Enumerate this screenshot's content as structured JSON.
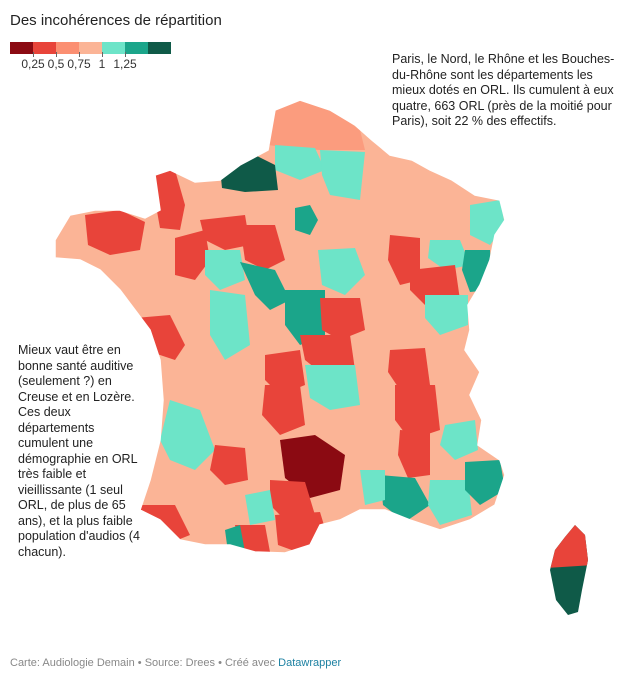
{
  "title": "Des incohérences de répartition",
  "legend": {
    "colors": [
      "#8b0a12",
      "#e8443a",
      "#fb8f72",
      "#fbb496",
      "#6de4c8",
      "#1ba58a",
      "#0f5a48"
    ],
    "ticks": [
      "0,25",
      "0,5",
      "0,75",
      "1",
      "1,25"
    ]
  },
  "annotations": {
    "paris": "Paris, le Nord, le Rhône et les Bouches-du-Rhône sont les départements les mieux dotés en ORL. Ils cumulent à eux quatre, 663 ORL (près de la moitié pour Paris), soit 22 % des effectifs.",
    "creuse_lozere": "Mieux vaut être en bonne santé auditive (seulement ?) en Creuse et en Lozère. Ces deux départements cumulent une démographie en ORL très faible et vieillissante (1 seul ORL, de plus de 65 ans), et la plus faible population d'audios (4 chacun)."
  },
  "map_data": {
    "regions": [
      {
        "name": "Lozère",
        "level": "lowest"
      },
      {
        "name": "Seine-Maritime",
        "level": "highest"
      },
      {
        "name": "Haute-Corse",
        "level": "low"
      },
      {
        "name": "Corse-du-Sud",
        "level": "highest"
      }
    ]
  },
  "footer": {
    "text": "Carte: Audiologie Demain • Source: Drees • Créé avec ",
    "link": "Datawrapper"
  }
}
